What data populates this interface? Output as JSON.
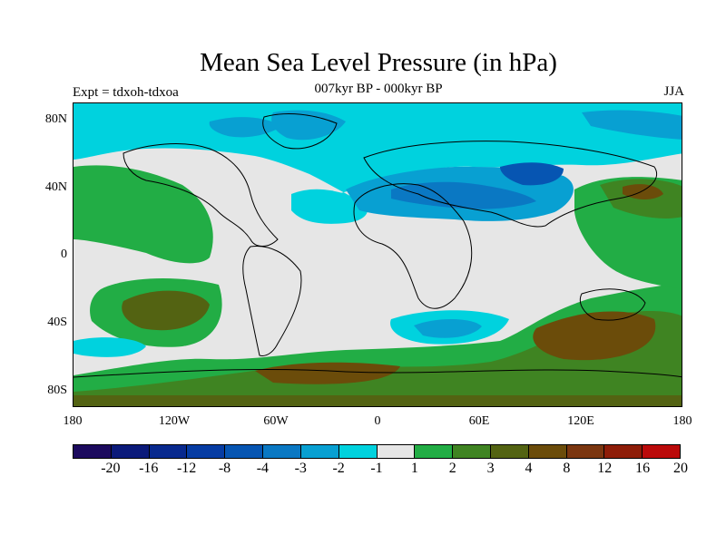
{
  "title": "Mean Sea Level Pressure (in hPa)",
  "subtitle": "007kyr BP - 000kyr BP",
  "experiment": "Expt = tdxoh-tdxoa",
  "season": "JJA",
  "map": {
    "projection": "cylindrical equidistant",
    "lon_range": [
      -180,
      180
    ],
    "lat_range": [
      -90,
      90
    ],
    "background_color": "#e6e6e6",
    "coastline_color": "#000000"
  },
  "axes": {
    "y_labels": [
      "80N",
      "40N",
      "0",
      "40S",
      "80S"
    ],
    "x_labels": [
      "180",
      "120W",
      "60W",
      "0",
      "60E",
      "120E",
      "180"
    ]
  },
  "colorbar": {
    "colors": [
      "#1c0a5e",
      "#0b1a7a",
      "#08298e",
      "#063ca3",
      "#0655b2",
      "#0a78c3",
      "#08a0d2",
      "#00d2de",
      "#e6e6e6",
      "#22ad45",
      "#3f8422",
      "#536312",
      "#6b4c0a",
      "#7b3610",
      "#8e1d08",
      "#bb0a0a"
    ],
    "labels": [
      "-20",
      "-16",
      "-12",
      "-8",
      "-4",
      "-3",
      "-2",
      "-1",
      "1",
      "2",
      "3",
      "4",
      "8",
      "12",
      "16",
      "20"
    ]
  }
}
